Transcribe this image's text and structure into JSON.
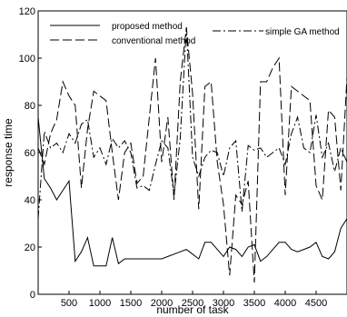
{
  "chart_data": {
    "type": "line",
    "title": "",
    "xlabel": "number of task",
    "ylabel": "response time",
    "xlim": [
      0,
      5000
    ],
    "ylim": [
      0,
      120
    ],
    "x_ticks": [
      500,
      1000,
      1500,
      2000,
      2500,
      3000,
      3500,
      4000,
      4500
    ],
    "y_ticks": [
      0,
      20,
      40,
      60,
      80,
      100,
      120
    ],
    "grid": false,
    "legend": {
      "placement": "top",
      "entries": [
        {
          "name": "proposed method",
          "style": "solid"
        },
        {
          "name": "simple GA method",
          "style": "dashdot"
        },
        {
          "name": "conventional method",
          "style": "dashed"
        }
      ]
    },
    "series": [
      {
        "name": "proposed method",
        "style": "solid",
        "x": [
          0,
          100,
          200,
          300,
          400,
          500,
          600,
          700,
          800,
          900,
          1000,
          1100,
          1200,
          1300,
          1400,
          1500,
          1600,
          1700,
          1800,
          1900,
          2000,
          2100,
          2200,
          2300,
          2400,
          2500,
          2600,
          2700,
          2800,
          2900,
          3000,
          3100,
          3200,
          3300,
          3400,
          3500,
          3600,
          3700,
          3800,
          3900,
          4000,
          4100,
          4200,
          4300,
          4400,
          4500,
          4600,
          4700,
          4800,
          4900,
          5000
        ],
        "values": [
          75,
          49,
          45,
          40,
          44,
          48,
          14,
          18,
          24,
          12,
          12,
          12,
          24,
          13,
          15,
          15,
          15,
          15,
          15,
          15,
          15,
          16,
          17,
          18,
          19,
          17,
          15,
          22,
          22,
          19,
          16,
          20,
          19,
          16,
          20,
          21,
          14,
          16,
          19,
          22,
          22,
          19,
          18,
          19,
          20,
          22,
          16,
          15,
          18,
          28,
          32
        ]
      },
      {
        "name": "simple GA method",
        "style": "dashdot",
        "x": [
          0,
          100,
          200,
          300,
          400,
          500,
          600,
          700,
          800,
          900,
          1000,
          1100,
          1200,
          1300,
          1400,
          1500,
          1600,
          1700,
          1800,
          1900,
          2000,
          2100,
          2200,
          2300,
          2400,
          2500,
          2600,
          2700,
          2800,
          2900,
          3000,
          3100,
          3200,
          3300,
          3400,
          3500,
          3600,
          3700,
          3800,
          3900,
          4000,
          4100,
          4200,
          4300,
          4400,
          4500,
          4600,
          4700,
          4800,
          4900,
          5000
        ],
        "values": [
          32,
          69,
          62,
          64,
          60,
          68,
          64,
          72,
          74,
          58,
          62,
          55,
          66,
          62,
          65,
          60,
          45,
          46,
          44,
          55,
          65,
          62,
          42,
          66,
          113,
          58,
          50,
          58,
          61,
          60,
          50,
          62,
          65,
          35,
          63,
          61,
          62,
          58,
          60,
          62,
          55,
          68,
          75,
          62,
          60,
          76,
          58,
          64,
          52,
          62,
          56
        ]
      },
      {
        "name": "conventional method",
        "style": "dashed",
        "x": [
          0,
          100,
          200,
          300,
          400,
          500,
          600,
          700,
          800,
          900,
          1000,
          1100,
          1200,
          1300,
          1400,
          1500,
          1600,
          1700,
          1800,
          1900,
          2000,
          2100,
          2200,
          2300,
          2400,
          2500,
          2600,
          2700,
          2800,
          2900,
          3000,
          3100,
          3200,
          3300,
          3400,
          3500,
          3600,
          3700,
          3800,
          3900,
          4000,
          4100,
          4200,
          4300,
          4400,
          4500,
          4600,
          4700,
          4800,
          4900,
          5000
        ],
        "values": [
          62,
          55,
          68,
          74,
          90,
          84,
          80,
          45,
          70,
          86,
          84,
          82,
          60,
          40,
          60,
          64,
          47,
          50,
          75,
          100,
          56,
          75,
          40,
          90,
          113,
          85,
          36,
          88,
          90,
          56,
          38,
          8,
          42,
          38,
          48,
          5,
          90,
          90,
          96,
          100,
          42,
          88,
          86,
          84,
          82,
          46,
          40,
          78,
          75,
          44,
          92
        ]
      }
    ]
  }
}
